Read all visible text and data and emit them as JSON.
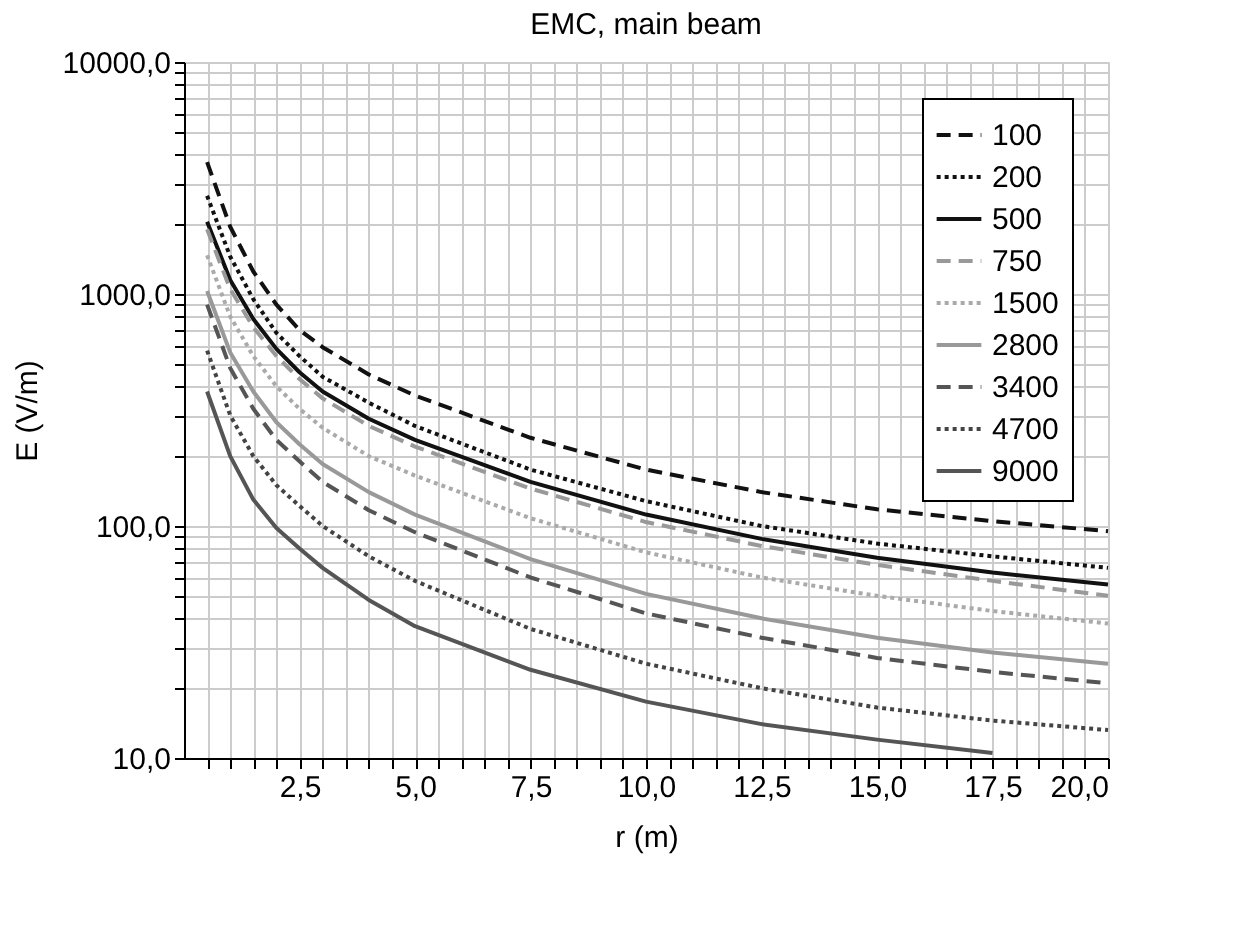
{
  "chart_data": {
    "type": "line",
    "title": "EMC, main beam",
    "xlabel": "r (m)",
    "ylabel": "E (V/m)",
    "log": "y",
    "x": [
      0.5,
      1,
      1.5,
      2,
      2.5,
      3,
      4,
      5,
      7.5,
      10,
      12.5,
      15,
      17.5,
      20
    ],
    "xlim": [
      0,
      20
    ],
    "xticks": [
      {
        "value": 0.5,
        "label": null
      },
      {
        "value": 1,
        "label": null
      },
      {
        "value": 1.5,
        "label": null
      },
      {
        "value": 2,
        "label": null
      },
      {
        "value": 2.5,
        "label": "2,5"
      },
      {
        "value": 3,
        "label": null
      },
      {
        "value": 3.5,
        "label": null
      },
      {
        "value": 4,
        "label": null
      },
      {
        "value": 4.5,
        "label": null
      },
      {
        "value": 5,
        "label": "5,0"
      },
      {
        "value": 5.5,
        "label": null
      },
      {
        "value": 6,
        "label": null
      },
      {
        "value": 6.5,
        "label": null
      },
      {
        "value": 7,
        "label": null
      },
      {
        "value": 7.5,
        "label": "7,5"
      },
      {
        "value": 8,
        "label": null
      },
      {
        "value": 8.5,
        "label": null
      },
      {
        "value": 9,
        "label": null
      },
      {
        "value": 9.5,
        "label": null
      },
      {
        "value": 10,
        "label": "10,0"
      },
      {
        "value": 10.5,
        "label": null
      },
      {
        "value": 11,
        "label": null
      },
      {
        "value": 11.5,
        "label": null
      },
      {
        "value": 12,
        "label": null
      },
      {
        "value": 12.5,
        "label": "12,5"
      },
      {
        "value": 13,
        "label": null
      },
      {
        "value": 13.5,
        "label": null
      },
      {
        "value": 14,
        "label": null
      },
      {
        "value": 14.5,
        "label": null
      },
      {
        "value": 15,
        "label": "15,0"
      },
      {
        "value": 15.5,
        "label": null
      },
      {
        "value": 16,
        "label": null
      },
      {
        "value": 16.5,
        "label": null
      },
      {
        "value": 17,
        "label": null
      },
      {
        "value": 17.5,
        "label": "17,5"
      },
      {
        "value": 18,
        "label": null
      },
      {
        "value": 18.5,
        "label": null
      },
      {
        "value": 19,
        "label": null
      },
      {
        "value": 19.5,
        "label": null
      },
      {
        "value": 20,
        "label": "20,0"
      }
    ],
    "ylim": [
      10,
      10000
    ],
    "yticks": [
      {
        "value": 10,
        "label": "10,0"
      },
      {
        "value": 20,
        "label": null
      },
      {
        "value": 30,
        "label": null
      },
      {
        "value": 40,
        "label": null
      },
      {
        "value": 50,
        "label": null
      },
      {
        "value": 60,
        "label": null
      },
      {
        "value": 70,
        "label": null
      },
      {
        "value": 80,
        "label": null
      },
      {
        "value": 90,
        "label": null
      },
      {
        "value": 100,
        "label": "100,0"
      },
      {
        "value": 200,
        "label": null
      },
      {
        "value": 300,
        "label": null
      },
      {
        "value": 400,
        "label": null
      },
      {
        "value": 500,
        "label": null
      },
      {
        "value": 600,
        "label": null
      },
      {
        "value": 700,
        "label": null
      },
      {
        "value": 800,
        "label": null
      },
      {
        "value": 900,
        "label": null
      },
      {
        "value": 1000,
        "label": "1000,0"
      },
      {
        "value": 2000,
        "label": null
      },
      {
        "value": 3000,
        "label": null
      },
      {
        "value": 4000,
        "label": null
      },
      {
        "value": 5000,
        "label": null
      },
      {
        "value": 6000,
        "label": null
      },
      {
        "value": 7000,
        "label": null
      },
      {
        "value": 8000,
        "label": null
      },
      {
        "value": 9000,
        "label": null
      },
      {
        "value": 10000,
        "label": "10000,0"
      }
    ],
    "grid": true,
    "legend": "top right",
    "marker": "none",
    "series": [
      {
        "name": "100",
        "color": "#111111",
        "line_style": "dashed",
        "values": [
          3700,
          1950,
          1250,
          900,
          700,
          590,
          450,
          365,
          240,
          175,
          140,
          118,
          105,
          95
        ]
      },
      {
        "name": "200",
        "color": "#111111",
        "line_style": "dotted",
        "values": [
          2650,
          1450,
          950,
          680,
          540,
          440,
          340,
          270,
          175,
          128,
          100,
          84,
          74,
          66
        ]
      },
      {
        "name": "500",
        "color": "#111111",
        "line_style": "solid",
        "values": [
          2050,
          1150,
          780,
          580,
          460,
          380,
          290,
          235,
          155,
          112,
          88,
          73,
          63,
          56
        ]
      },
      {
        "name": "750",
        "color": "#999999",
        "line_style": "dashed",
        "values": [
          1900,
          1050,
          720,
          540,
          430,
          355,
          270,
          220,
          145,
          104,
          82,
          68,
          58,
          50
        ]
      },
      {
        "name": "1500",
        "color": "#aaaaaa",
        "line_style": "dotted",
        "values": [
          1470,
          800,
          540,
          400,
          320,
          265,
          200,
          165,
          108,
          77,
          60,
          50,
          43,
          38
        ]
      },
      {
        "name": "2800",
        "color": "#999999",
        "line_style": "solid",
        "values": [
          1030,
          560,
          380,
          280,
          225,
          185,
          140,
          112,
          72,
          51,
          40,
          33,
          28.5,
          25.5
        ]
      },
      {
        "name": "3400",
        "color": "#555555",
        "line_style": "dashed",
        "values": [
          900,
          480,
          320,
          235,
          190,
          155,
          117,
          94,
          60,
          42,
          33,
          27,
          23.5,
          21
        ]
      },
      {
        "name": "4700",
        "color": "#444444",
        "line_style": "dotted",
        "values": [
          570,
          300,
          200,
          150,
          122,
          100,
          74,
          58,
          36,
          25.5,
          20,
          16.5,
          14.5,
          13.2
        ]
      },
      {
        "name": "9000",
        "color": "#555555",
        "line_style": "solid",
        "values": [
          380,
          200,
          130,
          98,
          80,
          66,
          48,
          37,
          24,
          17.5,
          14,
          12,
          10.5,
          null
        ]
      }
    ]
  }
}
